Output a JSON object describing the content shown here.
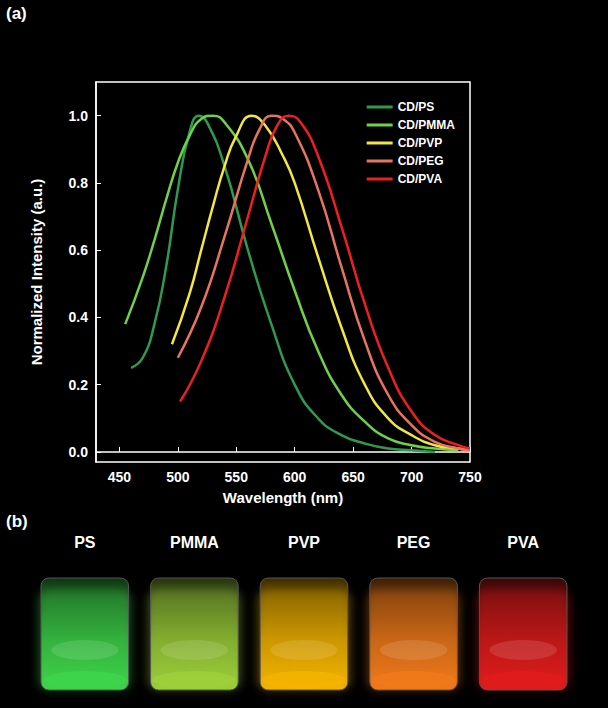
{
  "chart_data": {
    "type": "line",
    "x_label": "Wavelength (nm)",
    "y_label": "Normalized Intensity (a.u.)",
    "xlim": [
      430,
      750
    ],
    "xticks": [
      450,
      500,
      550,
      600,
      650,
      700,
      750
    ],
    "ylim": [
      -0.03,
      1.1
    ],
    "yticks": [
      {
        "value": 0,
        "label": "0.0"
      },
      {
        "value": 0.2,
        "label": "0.2"
      },
      {
        "value": 0.4,
        "label": "0.4"
      },
      {
        "value": 0.6,
        "label": "0.6"
      },
      {
        "value": 0.8,
        "label": "0.8"
      },
      {
        "value": 1.0,
        "label": "1.0"
      }
    ],
    "grid": false,
    "legend": "upper right",
    "series": [
      {
        "name": "CD/PS",
        "color": "#2e9a4e",
        "x": [
          460,
          470,
          480,
          490,
          500,
          510,
          518,
          525,
          540,
          560,
          580,
          600,
          620,
          640,
          660,
          680,
          700,
          720
        ],
        "values": [
          0.25,
          0.28,
          0.38,
          0.55,
          0.78,
          0.95,
          1.0,
          0.98,
          0.85,
          0.6,
          0.38,
          0.2,
          0.1,
          0.05,
          0.025,
          0.01,
          0.005,
          0
        ]
      },
      {
        "name": "CD/PMMA",
        "color": "#6fd04a",
        "x": [
          455,
          470,
          480,
          490,
          500,
          510,
          520,
          530,
          540,
          560,
          580,
          600,
          620,
          640,
          660,
          680,
          700,
          720,
          740
        ],
        "values": [
          0.38,
          0.52,
          0.63,
          0.75,
          0.86,
          0.94,
          0.99,
          1.0,
          0.98,
          0.87,
          0.68,
          0.48,
          0.3,
          0.17,
          0.09,
          0.04,
          0.02,
          0.01,
          0.005
        ]
      },
      {
        "name": "CD/PVP",
        "color": "#f2e640",
        "x": [
          495,
          510,
          520,
          530,
          540,
          550,
          563,
          575,
          590,
          600,
          620,
          640,
          660,
          680,
          700,
          720,
          740,
          750
        ],
        "values": [
          0.32,
          0.47,
          0.6,
          0.73,
          0.85,
          0.94,
          1.0,
          0.97,
          0.88,
          0.8,
          0.58,
          0.37,
          0.2,
          0.1,
          0.05,
          0.02,
          0.01,
          0.005
        ]
      },
      {
        "name": "CD/PEG",
        "color": "#e8745e",
        "x": [
          500,
          520,
          540,
          560,
          570,
          580,
          590,
          600,
          620,
          640,
          660,
          680,
          700,
          720,
          740,
          750
        ],
        "values": [
          0.28,
          0.43,
          0.64,
          0.87,
          0.96,
          1.0,
          0.99,
          0.95,
          0.78,
          0.55,
          0.33,
          0.17,
          0.08,
          0.03,
          0.01,
          0.005
        ]
      },
      {
        "name": "CD/PVA",
        "color": "#f01e1e",
        "x": [
          502,
          520,
          540,
          560,
          575,
          585,
          595,
          605,
          620,
          640,
          660,
          680,
          700,
          720,
          740,
          750
        ],
        "values": [
          0.15,
          0.27,
          0.46,
          0.7,
          0.88,
          0.97,
          1.0,
          0.98,
          0.88,
          0.67,
          0.44,
          0.25,
          0.12,
          0.05,
          0.02,
          0.01
        ]
      }
    ]
  },
  "panel_labels": [
    "(a)",
    "(b)"
  ],
  "photo": {
    "labels": [
      "PS",
      "PMMA",
      "PVP",
      "PEG",
      "PVA"
    ],
    "colors": [
      "#3ed44a",
      "#9ccf3a",
      "#f3b400",
      "#f07a1a",
      "#e01c1c"
    ]
  }
}
